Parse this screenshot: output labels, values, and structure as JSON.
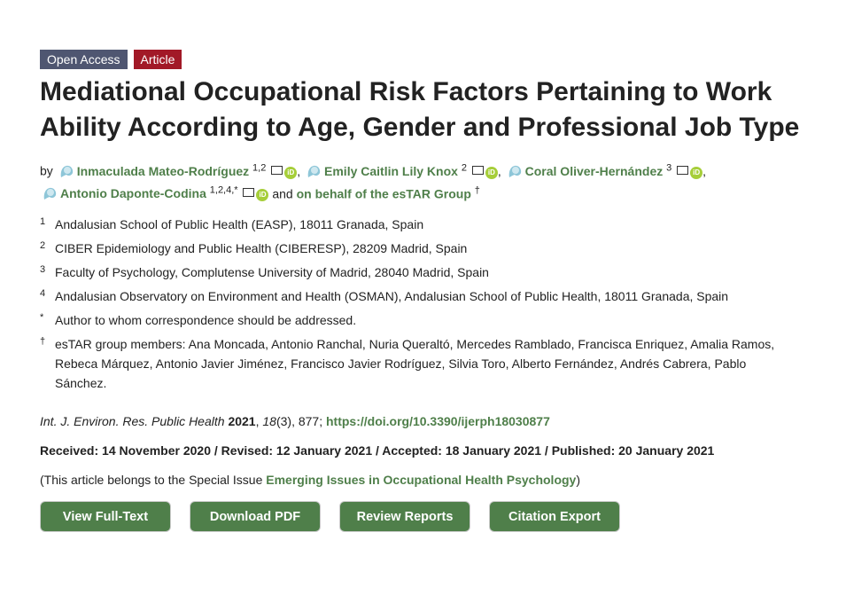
{
  "badges": {
    "access": "Open Access",
    "type": "Article"
  },
  "title": "Mediational Occupational Risk Factors Pertaining to Work Ability According to Age, Gender and Professional Job Type",
  "by": "by",
  "authors": [
    {
      "name": "Inmaculada Mateo-Rodríguez",
      "aff": "1,2"
    },
    {
      "name": "Emily Caitlin Lily Knox",
      "aff": "2"
    },
    {
      "name": "Coral Oliver-Hernández",
      "aff": "3"
    },
    {
      "name": "Antonio Daponte-Codina",
      "aff": "1,2,4,*"
    }
  ],
  "and": "and",
  "group": {
    "name": "on behalf of the esTAR Group",
    "aff": "†"
  },
  "affiliations": [
    {
      "n": "1",
      "text": "Andalusian School of Public Health (EASP), 18011 Granada, Spain"
    },
    {
      "n": "2",
      "text": "CIBER Epidemiology and Public Health (CIBERESP), 28209 Madrid, Spain"
    },
    {
      "n": "3",
      "text": "Faculty of Psychology, Complutense University of Madrid, 28040 Madrid, Spain"
    },
    {
      "n": "4",
      "text": "Andalusian Observatory on Environment and Health (OSMAN), Andalusian School of Public Health, 18011 Granada, Spain"
    },
    {
      "n": "*",
      "text": "Author to whom correspondence should be addressed."
    },
    {
      "n": "†",
      "text": "esTAR group members: Ana Moncada, Antonio Ranchal, Nuria Queraltó, Mercedes Ramblado, Francisca Enriquez, Amalia Ramos, Rebeca Márquez, Antonio Javier Jiménez, Francisco Javier Rodríguez, Silvia Toro, Alberto Fernández, Andrés Cabrera, Pablo Sánchez."
    }
  ],
  "citation": {
    "journal": "Int. J. Environ. Res. Public Health",
    "year": "2021",
    "volume": "18",
    "issue": "(3), 877;",
    "doi": "https://doi.org/10.3390/ijerph18030877"
  },
  "dates": "Received: 14 November 2020 / Revised: 12 January 2021 / Accepted: 18 January 2021 / Published: 20 January 2021",
  "special": {
    "prefix": "(This article belongs to the Special Issue ",
    "link": "Emerging Issues in Occupational Health Psychology",
    "suffix": ")"
  },
  "buttons": [
    "View Full-Text",
    "Download PDF",
    "Review Reports",
    "Citation Export"
  ],
  "colors": {
    "green": "#4f7f4a",
    "badge_blue": "#4f5671",
    "badge_red": "#a21927",
    "orcid": "#a6ce39"
  }
}
